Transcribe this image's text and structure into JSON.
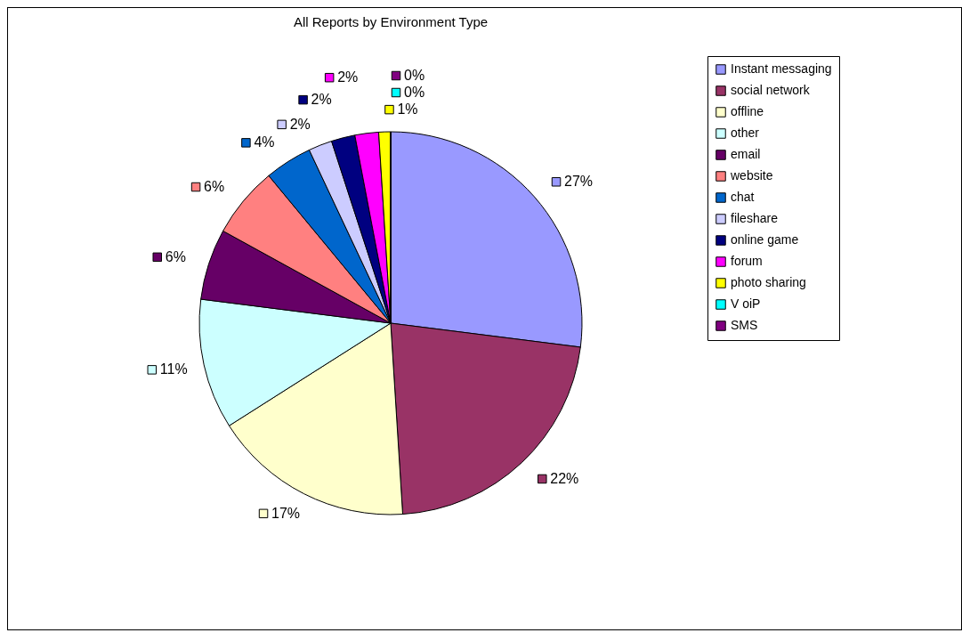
{
  "chart_data": {
    "type": "pie",
    "title": "All Reports by Environment Type",
    "categories": [
      "Instant messaging",
      "social network",
      "offline",
      "other",
      "email",
      "website",
      "chat",
      "fileshare",
      "online game",
      "forum",
      "photo sharing",
      "V oiP",
      "SMS"
    ],
    "values": [
      27,
      22,
      17,
      11,
      6,
      6,
      4,
      2,
      2,
      2,
      1,
      0,
      0
    ],
    "value_labels": [
      "27%",
      "22%",
      "17%",
      "11%",
      "6%",
      "6%",
      "4%",
      "2%",
      "2%",
      "2%",
      "1%",
      "0%",
      "0%"
    ],
    "colors": [
      "#9999ff",
      "#993366",
      "#ffffcc",
      "#ccffff",
      "#660066",
      "#ff8080",
      "#0066cc",
      "#ccccff",
      "#000080",
      "#ff00ff",
      "#ffff00",
      "#00ffff",
      "#800080"
    ],
    "legend": "right"
  }
}
